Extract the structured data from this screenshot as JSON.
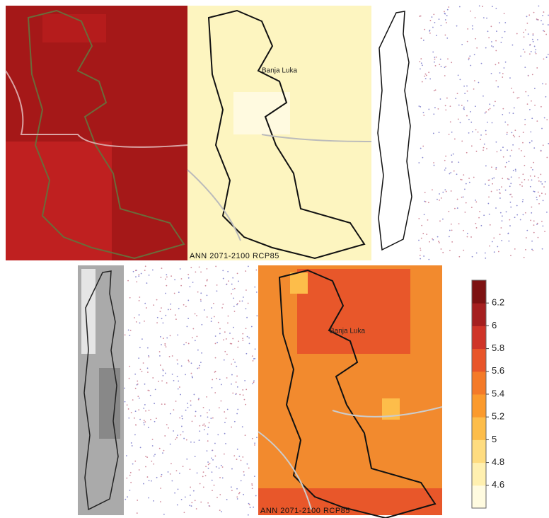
{
  "panels": [
    {
      "label": "Banja Luka",
      "caption": "ANN 2071-2100 RCP85"
    },
    {
      "label": "Banja Luka",
      "caption": "ANN 2071-2100 RCP85"
    }
  ],
  "colorbar": {
    "range": [
      4.4,
      6.4
    ],
    "ticks": [
      4.6,
      4.8,
      5,
      5.2,
      5.4,
      5.6,
      5.8,
      6,
      6.2
    ],
    "colors": [
      "#fffbe0",
      "#fff0b0",
      "#fedc80",
      "#fdbd4a",
      "#fb9a2c",
      "#f47a28",
      "#e8552a",
      "#cf3428",
      "#a51f1f",
      "#7d1212"
    ]
  }
}
